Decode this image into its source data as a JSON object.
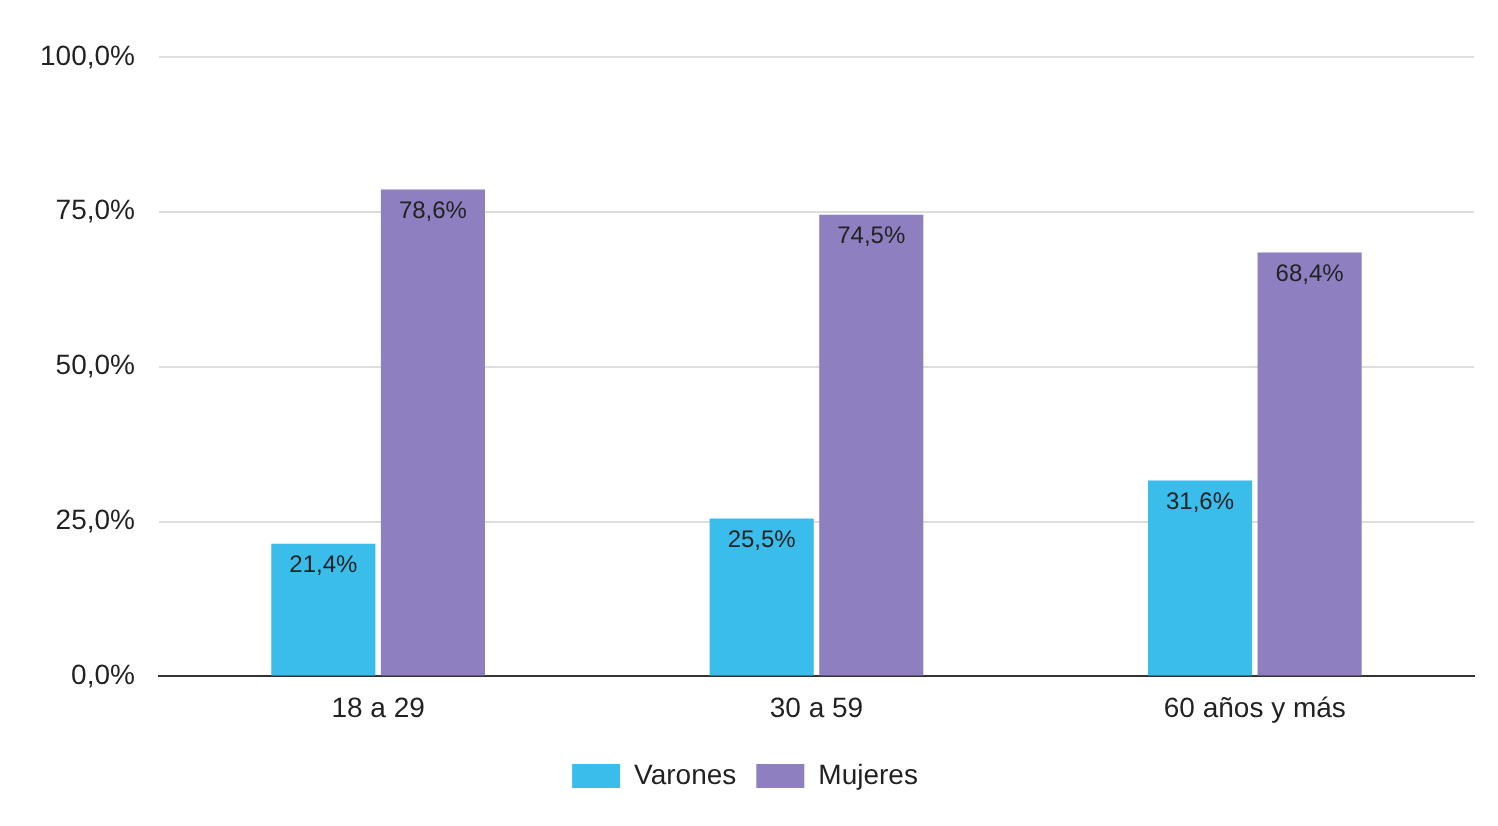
{
  "chart_data": {
    "type": "bar",
    "categories": [
      "18 a 29",
      "30 a 59",
      "60 años y más"
    ],
    "series": [
      {
        "name": "Varones",
        "color": "#3bbdec",
        "values": [
          21.4,
          25.5,
          31.6
        ],
        "value_labels": [
          "21,4%",
          "25,5%",
          "31,6%"
        ]
      },
      {
        "name": "Mujeres",
        "color": "#8e7fc1",
        "values": [
          78.6,
          74.5,
          68.4
        ],
        "value_labels": [
          "78,6%",
          "74,5%",
          "68,4%"
        ]
      }
    ],
    "ylim": [
      0,
      100
    ],
    "yticks": [
      {
        "value": 0,
        "label": "0,0%"
      },
      {
        "value": 25,
        "label": "25,0%"
      },
      {
        "value": 50,
        "label": "50,0%"
      },
      {
        "value": 75,
        "label": "75,0%"
      },
      {
        "value": 100,
        "label": "100,0%"
      }
    ],
    "grid": "y",
    "legend": "bottom"
  }
}
